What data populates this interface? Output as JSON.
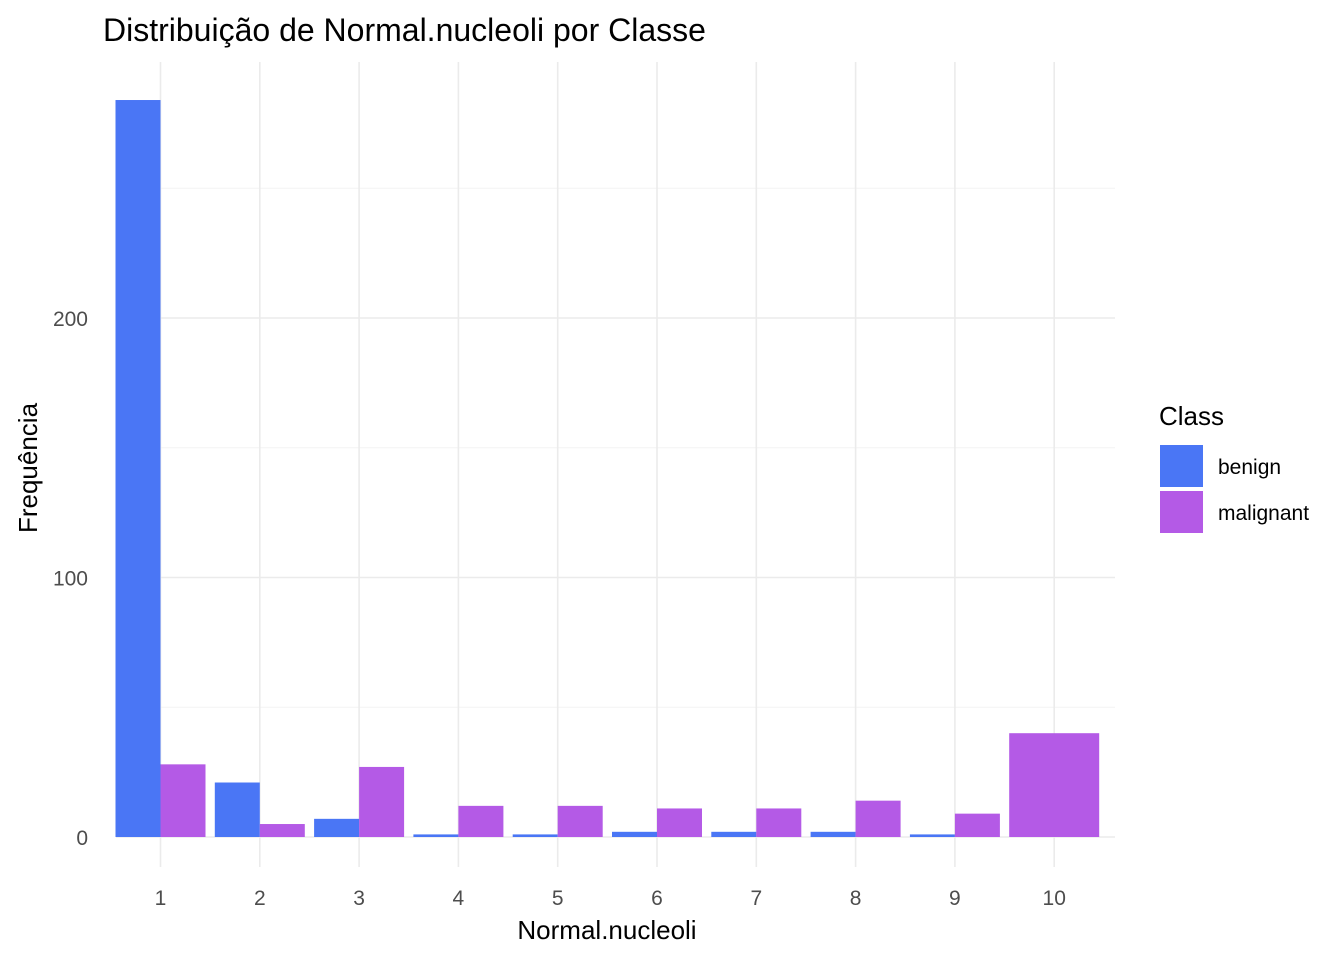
{
  "chart_data": {
    "type": "bar",
    "title": "Distribuição de Normal.nucleoli por Classe",
    "xlabel": "Normal.nucleoli",
    "ylabel": "Frequência",
    "categories": [
      "1",
      "2",
      "3",
      "4",
      "5",
      "6",
      "7",
      "8",
      "9",
      "10"
    ],
    "series": [
      {
        "name": "benign",
        "color": "#4a76f5",
        "values": [
          284,
          21,
          7,
          1,
          1,
          2,
          2,
          2,
          1,
          0
        ]
      },
      {
        "name": "malignant",
        "color": "#b45ae6",
        "values": [
          28,
          5,
          27,
          12,
          12,
          11,
          11,
          14,
          9,
          40
        ]
      }
    ],
    "ylim": [
      0,
      290
    ],
    "yticks": [
      0,
      100,
      200
    ],
    "grid": true,
    "legend": {
      "title": "Class",
      "placement": "right"
    }
  }
}
